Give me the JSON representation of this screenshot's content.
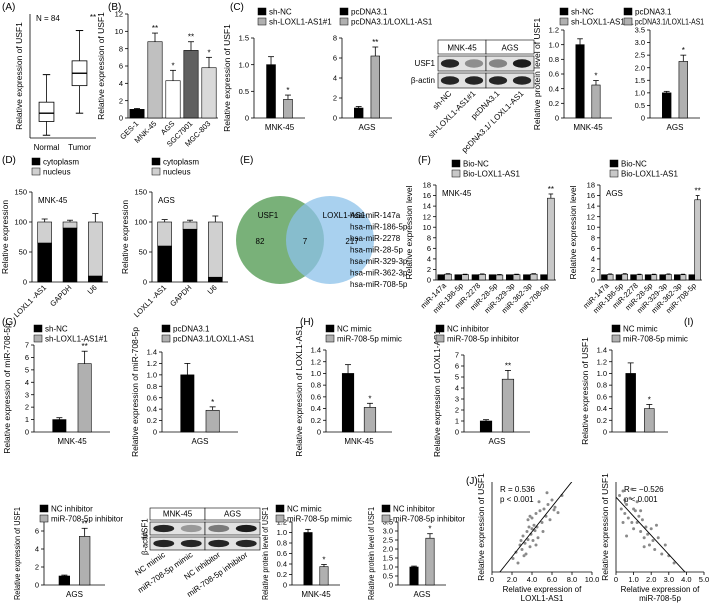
{
  "chart_data": [
    {
      "panel": "(A)",
      "type": "box",
      "ylabel": "Relative expression of USF1",
      "note": "N = 84",
      "categories": [
        "Normal",
        "Tumor"
      ],
      "stats": [
        {
          "min": 0.2,
          "q1": 1.2,
          "median": 1.8,
          "q3": 2.6,
          "max": 4.6
        },
        {
          "min": 1.8,
          "q1": 3.8,
          "median": 4.7,
          "q3": 5.6,
          "max": 7.8
        }
      ],
      "significance": [
        null,
        "**"
      ],
      "color": "#ffffff",
      "ylim": [
        0,
        9
      ]
    },
    {
      "panel": "(B)",
      "type": "bar",
      "ylabel": "Relative expression of USF1",
      "categories": [
        "GES-1",
        "MNK-45",
        "AGS",
        "SGC7901",
        "MGC-803"
      ],
      "values": [
        1,
        8.8,
        4.3,
        7.8,
        5.8
      ],
      "errors": [
        0.1,
        1.0,
        1.2,
        1.0,
        1.2
      ],
      "significance": [
        null,
        "**",
        "*",
        "**",
        "*"
      ],
      "colors": [
        "#000000",
        "#c0c0c0",
        "#ffffff",
        "#606060",
        "#d9d9d9"
      ],
      "ylim": [
        0,
        12
      ],
      "yticks": [
        0,
        2,
        4,
        6,
        8,
        10,
        12
      ]
    },
    {
      "panel": "(C)",
      "type": "bar",
      "ylabel": "Relative expression of USF1",
      "categories": [
        "MNK-45"
      ],
      "series": [
        {
          "name": "sh-NC",
          "color": "#000000",
          "values": [
            1
          ],
          "errors": [
            0.15
          ]
        },
        {
          "name": "sh-LOXL1-AS1#1",
          "color": "#b0b0b0",
          "values": [
            0.35
          ],
          "errors": [
            0.08
          ],
          "significance": [
            "*"
          ]
        }
      ],
      "ylim": [
        0,
        1.5
      ],
      "yticks": [
        0,
        0.5,
        {
          "value": 1,
          "label": "1.0"
        },
        1.5
      ]
    },
    {
      "type": "bar",
      "categories": [
        "AGS"
      ],
      "series": [
        {
          "name": "pcDNA3.1",
          "color": "#000000",
          "values": [
            1
          ],
          "errors": [
            0.15
          ]
        },
        {
          "name": "pcDNA3.1/LOXL1-AS1",
          "color": "#b0b0b0",
          "values": [
            6.2
          ],
          "errors": [
            0.9
          ],
          "significance": [
            "**"
          ]
        }
      ],
      "ylim": [
        0,
        8
      ],
      "yticks": [
        0,
        2,
        4,
        6,
        8
      ]
    },
    {
      "type": "blot",
      "groups": [
        "MNK-45",
        "AGS"
      ],
      "rows": [
        "USF1",
        "β-actin"
      ],
      "lanes": [
        "sh-NC",
        "sh-LOXL1-AS1#1",
        "pcDNA3.1",
        "pcDNA3.1/ LOXL1-AS1"
      ]
    },
    {
      "type": "bar",
      "ylabel": "Relative protein level of USF1",
      "categories": [
        "MNK-45"
      ],
      "series": [
        {
          "name": "sh-NC",
          "color": "#000000",
          "values": [
            1
          ],
          "errors": [
            0.08
          ]
        },
        {
          "name": "sh-LOXL1-AS1#1",
          "color": "#b0b0b0",
          "values": [
            0.45
          ],
          "errors": [
            0.06
          ],
          "significance": [
            "*"
          ]
        }
      ],
      "ylim": [
        0,
        1.2
      ],
      "yticks": [
        0,
        0.2,
        0.4,
        0.6,
        0.8,
        {
          "value": 1,
          "label": "1.0"
        },
        1.2
      ]
    },
    {
      "type": "bar",
      "categories": [
        "AGS"
      ],
      "series": [
        {
          "name": "pcDNA3.1",
          "color": "#000000",
          "values": [
            1
          ],
          "errors": [
            0.06
          ]
        },
        {
          "name": "pcDNA3.1/LOXL1-AS1",
          "color": "#b0b0b0",
          "values": [
            2.25
          ],
          "errors": [
            0.25
          ],
          "significance": [
            "*"
          ]
        }
      ],
      "ylim": [
        0,
        3.5
      ],
      "yticks": [
        0,
        0.5,
        {
          "value": 1,
          "label": "1.0"
        },
        1.5,
        {
          "value": 2,
          "label": "2.0"
        },
        2.5,
        {
          "value": 3,
          "label": "3.0"
        },
        3.5
      ]
    },
    {
      "panel": "(D)",
      "type": "stacked_bar",
      "title": "MNK-45",
      "ylabel": "Relative expression",
      "categories": [
        "LOXL1 -AS1",
        "GAPDH",
        "U6"
      ],
      "series": [
        {
          "name": "cytoplasm",
          "color": "#000000",
          "values": [
            65,
            90,
            10
          ],
          "errors": [
            5,
            3,
            14
          ]
        },
        {
          "name": "nucleus",
          "color": "#d0d0d0",
          "values": [
            35,
            10,
            90
          ],
          "errors": [
            5,
            3,
            14
          ]
        }
      ],
      "ylim": [
        0,
        150
      ],
      "yticks": [
        0,
        50,
        100,
        150
      ]
    },
    {
      "type": "stacked_bar",
      "title": "AGS",
      "ylabel": "Relative expression",
      "categories": [
        "LOXL1 -AS1",
        "GAPDH",
        "U6"
      ],
      "series": [
        {
          "name": "cytoplasm",
          "color": "#000000",
          "values": [
            60,
            88,
            8
          ],
          "errors": [
            4,
            3,
            10
          ]
        },
        {
          "name": "nucleus",
          "color": "#d0d0d0",
          "values": [
            40,
            12,
            92
          ],
          "errors": [
            4,
            3,
            10
          ]
        }
      ],
      "ylim": [
        0,
        150
      ],
      "yticks": [
        0,
        50,
        100,
        150
      ]
    },
    {
      "panel": "(E)",
      "type": "venn",
      "sets": [
        {
          "name": "USF1",
          "color": "#6aa86a"
        },
        {
          "name": "LOXL1-AS1",
          "color": "#8cc2ea"
        }
      ],
      "counts": [
        82,
        7,
        217
      ],
      "items": [
        "hsa-miR-147a",
        "hsa-miR-186-5p",
        "hsa-miR-2278",
        "hsa-miR-28-5p",
        "hsa-miR-329-3p",
        "hsa-miR-362-3p",
        "hsa-miR-708-5p"
      ]
    },
    {
      "panel": "(F)",
      "type": "bar",
      "title": "MNK-45",
      "ylabel": "Relative expression level",
      "categories": [
        "miR-147a",
        "miR-186-5p",
        "miR-2278",
        "miR-28-5p",
        "miR-329-3p",
        "miR-362-3p",
        "miR-708-5p"
      ],
      "series": [
        {
          "name": "Bio-NC",
          "color": "#000000",
          "values": [
            1,
            1,
            1,
            1,
            1,
            1,
            1
          ]
        },
        {
          "name": "Bio-LOXL1-AS1",
          "color": "#c8c8c8",
          "values": [
            1.1,
            1,
            1.05,
            0.95,
            1,
            1.1,
            15.5
          ],
          "errors": [
            0.1,
            0.1,
            0.1,
            0.1,
            0.1,
            0.1,
            0.8
          ],
          "significance": [
            null,
            null,
            null,
            null,
            null,
            null,
            "**"
          ]
        }
      ],
      "ylim": [
        0,
        18
      ],
      "yticks": [
        0,
        2,
        4,
        6,
        8,
        10,
        12,
        14,
        16,
        18
      ]
    },
    {
      "type": "bar",
      "title": "AGS",
      "ylabel": "Relative expression level",
      "categories": [
        "miR-147a",
        "miR-186-5p",
        "miR-2278",
        "miR-28-5p",
        "miR-329-3p",
        "miR-362-3p",
        "miR-708-5p"
      ],
      "series": [
        {
          "name": "Bio-NC",
          "color": "#000000",
          "values": [
            1,
            1,
            1,
            1,
            1,
            1,
            1
          ]
        },
        {
          "name": "Bio-LOXL1-AS1",
          "color": "#c8c8c8",
          "values": [
            1.05,
            1.1,
            1,
            1,
            1.05,
            1,
            15.2
          ],
          "errors": [
            0.1,
            0.1,
            0.1,
            0.1,
            0.1,
            0.1,
            0.8
          ],
          "significance": [
            null,
            null,
            null,
            null,
            null,
            null,
            "**"
          ]
        }
      ],
      "ylim": [
        0,
        18
      ],
      "yticks": [
        0,
        2,
        4,
        6,
        8,
        10,
        12,
        14,
        16,
        18
      ]
    },
    {
      "panel": "(G)",
      "type": "bar",
      "ylabel": "Relative expression of miR-708-5p",
      "categories": [
        "MNK-45"
      ],
      "series": [
        {
          "name": "sh-NC",
          "color": "#000000",
          "values": [
            1
          ],
          "errors": [
            0.15
          ]
        },
        {
          "name": "sh-LOXL1-AS1#1",
          "color": "#b0b0b0",
          "values": [
            5.5
          ],
          "errors": [
            1.0
          ],
          "significance": [
            "**"
          ]
        }
      ],
      "ylim": [
        0,
        7
      ],
      "yticks": [
        0,
        1,
        2,
        3,
        4,
        5,
        6,
        7
      ]
    },
    {
      "type": "bar",
      "ylabel": "Relative expression of miR-708-5p",
      "categories": [
        "AGS"
      ],
      "series": [
        {
          "name": "pcDNA3.1",
          "color": "#000000",
          "values": [
            1
          ],
          "errors": [
            0.2
          ]
        },
        {
          "name": "pcDNA3.1/LOXL1-AS1",
          "color": "#b0b0b0",
          "values": [
            0.38
          ],
          "errors": [
            0.06
          ],
          "significance": [
            "*"
          ]
        }
      ],
      "ylim": [
        0,
        1.4
      ],
      "yticks": [
        0,
        0.2,
        0.4,
        0.6,
        0.8,
        {
          "value": 1,
          "label": "1.0"
        },
        1.2,
        1.4
      ]
    },
    {
      "panel": "(H)",
      "type": "bar",
      "ylabel": "Relative expression of LOXL1-AS1",
      "categories": [
        "MNK-45"
      ],
      "series": [
        {
          "name": "NC mimic",
          "color": "#000000",
          "values": [
            1
          ],
          "errors": [
            0.15
          ]
        },
        {
          "name": "miR-708-5p mimic",
          "color": "#b0b0b0",
          "values": [
            0.42
          ],
          "errors": [
            0.07
          ],
          "significance": [
            "*"
          ]
        }
      ],
      "ylim": [
        0,
        1.4
      ],
      "yticks": [
        0,
        0.2,
        0.4,
        0.6,
        0.8,
        {
          "value": 1,
          "label": "1.0"
        },
        1.2,
        1.4
      ]
    },
    {
      "type": "bar",
      "ylabel": "Relative expression of LOXL1-AS1",
      "categories": [
        "AGS"
      ],
      "series": [
        {
          "name": "NC inhibitor",
          "color": "#000000",
          "values": [
            1
          ],
          "errors": [
            0.12
          ]
        },
        {
          "name": "miR-708-5p inhibitor",
          "color": "#b0b0b0",
          "values": [
            4.8
          ],
          "errors": [
            0.8
          ],
          "significance": [
            "**"
          ]
        }
      ],
      "ylim": [
        0,
        7
      ],
      "yticks": [
        0,
        1,
        2,
        3,
        4,
        5,
        6,
        7
      ]
    },
    {
      "panel": "(I)",
      "type": "bar",
      "ylabel": "Relative expression of USF1",
      "categories": [
        null
      ],
      "series": [
        {
          "name": "NC mimic",
          "color": "#000000",
          "values": [
            1
          ],
          "errors": [
            0.18
          ]
        },
        {
          "name": "miR-708-5p mimic",
          "color": "#b0b0b0",
          "values": [
            0.4
          ],
          "errors": [
            0.07
          ],
          "significance": [
            "*"
          ]
        }
      ],
      "ylim": [
        0,
        1.4
      ],
      "yticks": [
        0,
        0.2,
        0.4,
        0.6,
        0.8,
        {
          "value": 1,
          "label": "1.0"
        },
        1.2,
        1.4
      ]
    },
    {
      "type": "bar",
      "ylabel": "Relative expression of USF1",
      "categories": [
        "AGS"
      ],
      "series": [
        {
          "name": "NC inhibitor",
          "color": "#000000",
          "values": [
            1
          ],
          "errors": [
            0.1
          ]
        },
        {
          "name": "miR-708-5p inhibitor",
          "color": "#b0b0b0",
          "values": [
            5.4
          ],
          "errors": [
            0.9
          ],
          "significance": [
            "**"
          ]
        }
      ],
      "ylim": [
        0,
        7
      ],
      "yticks": [
        0,
        2,
        4,
        6
      ]
    },
    {
      "type": "blot",
      "groups": [
        "MNK-45",
        "AGS"
      ],
      "rows": [
        "USF1",
        "β-actin"
      ],
      "lanes": [
        "NC mimic",
        "miR-708-5p mimic",
        "NC inhibitor",
        "miR-708-5p inhibitor"
      ]
    },
    {
      "type": "bar",
      "ylabel": "Relative protein level of USF1",
      "categories": [
        "MNK-45"
      ],
      "series": [
        {
          "name": "NC mimic",
          "color": "#000000",
          "values": [
            1
          ],
          "errors": [
            0.06
          ]
        },
        {
          "name": "miR-708-5p mimic",
          "color": "#b0b0b0",
          "values": [
            0.35
          ],
          "errors": [
            0.04
          ],
          "significance": [
            "*"
          ]
        }
      ],
      "ylim": [
        0,
        1.2
      ],
      "yticks": [
        0,
        0.2,
        0.4,
        0.6,
        0.8,
        {
          "value": 1,
          "label": "1.0"
        },
        1.2
      ]
    },
    {
      "type": "bar",
      "ylabel": "Relative protein level of USF1",
      "categories": [
        "AGS"
      ],
      "series": [
        {
          "name": "NC inhibitor",
          "color": "#000000",
          "values": [
            1
          ],
          "errors": [
            0.05
          ]
        },
        {
          "name": "miR-708-5p inhibitor",
          "color": "#b0b0b0",
          "values": [
            2.6
          ],
          "errors": [
            0.25
          ],
          "significance": [
            "*"
          ]
        }
      ],
      "ylim": [
        0,
        3.5
      ],
      "yticks": [
        0,
        0.5,
        {
          "value": 1,
          "label": "1.0"
        },
        1.5,
        {
          "value": 2,
          "label": "2.0"
        },
        2.5,
        {
          "value": 3,
          "label": "3.0"
        },
        3.5
      ]
    },
    {
      "panel": "(J)",
      "type": "scatter",
      "annotations": [
        "R = 0.536",
        "p < 0.001"
      ],
      "ylabel": "Relative expression of USF1",
      "xlabel": [
        "Relative expression of",
        "LOXL1-AS1"
      ],
      "x": [
        2.1,
        2.4,
        2.6,
        2.8,
        3.0,
        3.1,
        3.3,
        3.4,
        3.5,
        3.6,
        3.7,
        3.8,
        3.9,
        4.0,
        4.1,
        4.2,
        4.3,
        4.4,
        4.5,
        4.6,
        4.8,
        5.0,
        5.2,
        5.4,
        5.6,
        5.8,
        6.0,
        6.3,
        6.6,
        7.0,
        3.2,
        3.6,
        4.0,
        4.7,
        5.1,
        2.9,
        3.8,
        4.4,
        5.5,
        6.2
      ],
      "values": [
        1.5,
        2.2,
        1.0,
        3.0,
        2.5,
        4.0,
        3.2,
        2.0,
        4.5,
        3.6,
        5.0,
        2.8,
        4.2,
        6.0,
        3.5,
        5.2,
        4.6,
        6.5,
        5.0,
        3.8,
        6.8,
        5.5,
        7.0,
        6.2,
        7.5,
        5.8,
        8.0,
        7.2,
        6.6,
        8.5,
        1.8,
        5.8,
        4.8,
        7.8,
        4.5,
        3.5,
        6.2,
        3.0,
        8.8,
        6.9
      ],
      "color": "#8a8a8a",
      "xlim": [
        0,
        10
      ],
      "xticks": [
        0,
        {
          "value": 2,
          "label": "2.0"
        },
        {
          "value": 4,
          "label": "4.0"
        },
        {
          "value": 6,
          "label": "6.0"
        },
        {
          "value": 8,
          "label": "8.0"
        },
        {
          "value": 10,
          "label": "10.0"
        }
      ],
      "ylim": [
        0,
        10
      ]
    },
    {
      "type": "scatter",
      "annotations": [
        "R = −0.526",
        "p < 0.001"
      ],
      "ylabel": "Relative expression of USF1",
      "xlabel": [
        "Relative expression of",
        "miR-708-5p"
      ],
      "x": [
        0.2,
        0.3,
        0.4,
        0.5,
        0.5,
        0.6,
        0.7,
        0.8,
        0.9,
        1.0,
        1.0,
        1.1,
        1.2,
        1.3,
        1.4,
        1.5,
        1.6,
        1.7,
        1.8,
        1.9,
        2.0,
        2.1,
        2.2,
        2.4,
        2.6,
        2.8,
        3.0,
        3.3,
        0.4,
        0.9,
        1.2,
        1.6,
        2.3,
        0.6,
        1.4
      ],
      "values": [
        8.5,
        7.0,
        9.0,
        6.5,
        8.0,
        7.5,
        6.0,
        8.2,
        5.5,
        7.0,
        4.8,
        6.8,
        5.5,
        6.2,
        4.5,
        5.8,
        3.8,
        5.0,
        4.2,
        3.0,
        4.8,
        3.5,
        2.5,
        3.8,
        2.0,
        3.0,
        1.8,
        1.0,
        5.5,
        9.2,
        7.8,
        2.8,
        5.2,
        4.0,
        6.8
      ],
      "color": "#8a8a8a",
      "xlim": [
        0,
        5
      ],
      "xticks": [
        0,
        {
          "value": 1,
          "label": "1.0"
        },
        {
          "value": 2,
          "label": "2.0"
        },
        {
          "value": 3,
          "label": "3.0"
        },
        {
          "value": 4,
          "label": "4.0"
        },
        {
          "value": 5,
          "label": "5.0"
        }
      ],
      "ylim": [
        0,
        10
      ]
    }
  ]
}
